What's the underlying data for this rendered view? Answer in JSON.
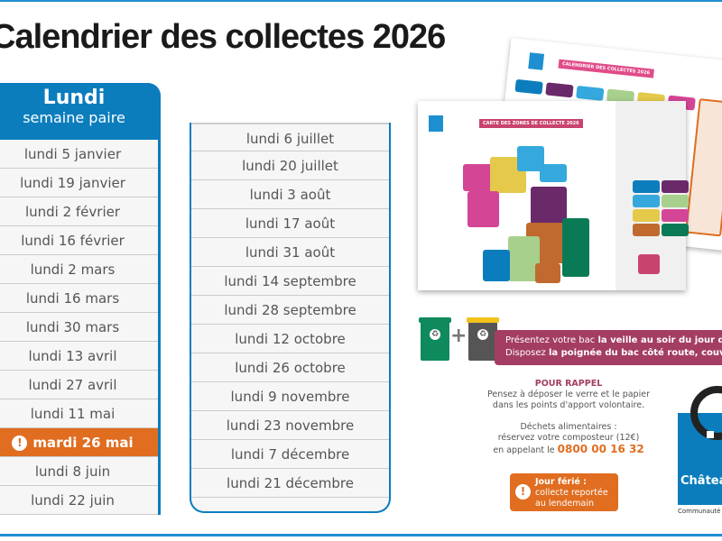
{
  "title": "Calendrier des collectes 2026",
  "column1": {
    "heading": "Lundi",
    "subheading": "semaine paire",
    "dates": [
      "lundi 5 janvier",
      "lundi 19 janvier",
      "lundi 2 février",
      "lundi 16 février",
      "lundi 2 mars",
      "lundi 16 mars",
      "lundi 30 mars",
      "lundi 13 avril",
      "lundi 27 avril",
      "lundi 11 mai",
      "mardi 26 mai",
      "lundi 8 juin",
      "lundi 22 juin"
    ],
    "highlighted": "mardi 26 mai"
  },
  "column2": {
    "dates": [
      "lundi 6 juillet",
      "lundi 20 juillet",
      "lundi 3 août",
      "lundi 17 août",
      "lundi 31 août",
      "lundi 14 septembre",
      "lundi 28 septembre",
      "lundi 12 octobre",
      "lundi 26 octobre",
      "lundi 9 novembre",
      "lundi 23 novembre",
      "lundi 7 décembre",
      "lundi 21 décembre"
    ]
  },
  "preview": {
    "back_title": "CALENDRIER DES COLLECTES 2026",
    "front_title": "CARTE DES ZONES DE COLLECTE 2026"
  },
  "banner": {
    "line1_a": "Présentez votre bac ",
    "line1_b": "la veille au soir du jour de c",
    "line2_a": "Disposez ",
    "line2_b": "la poignée du bac côté route, couvercl"
  },
  "reminder": {
    "heading": "POUR RAPPEL",
    "line1": "Pensez à déposer le verre et le papier",
    "line2": "dans les points d'apport volontaire.",
    "food1": "Déchets alimentaires :",
    "food2": "réservez votre composteur (12€)",
    "food3": "en appelant le ",
    "phone": "0800 00 16 32"
  },
  "holiday": {
    "line1": "Jour férié :",
    "line2": "collecte reportée",
    "line3": "au lendemain"
  },
  "brand": {
    "name": "Châtea",
    "subtitle": "Communauté"
  },
  "colors": {
    "blue": "#0b7dbd",
    "orange": "#e06d20",
    "plum": "#a43d63",
    "green_bin": "#0f8a5c",
    "yellow_lid": "#f2c21b"
  }
}
